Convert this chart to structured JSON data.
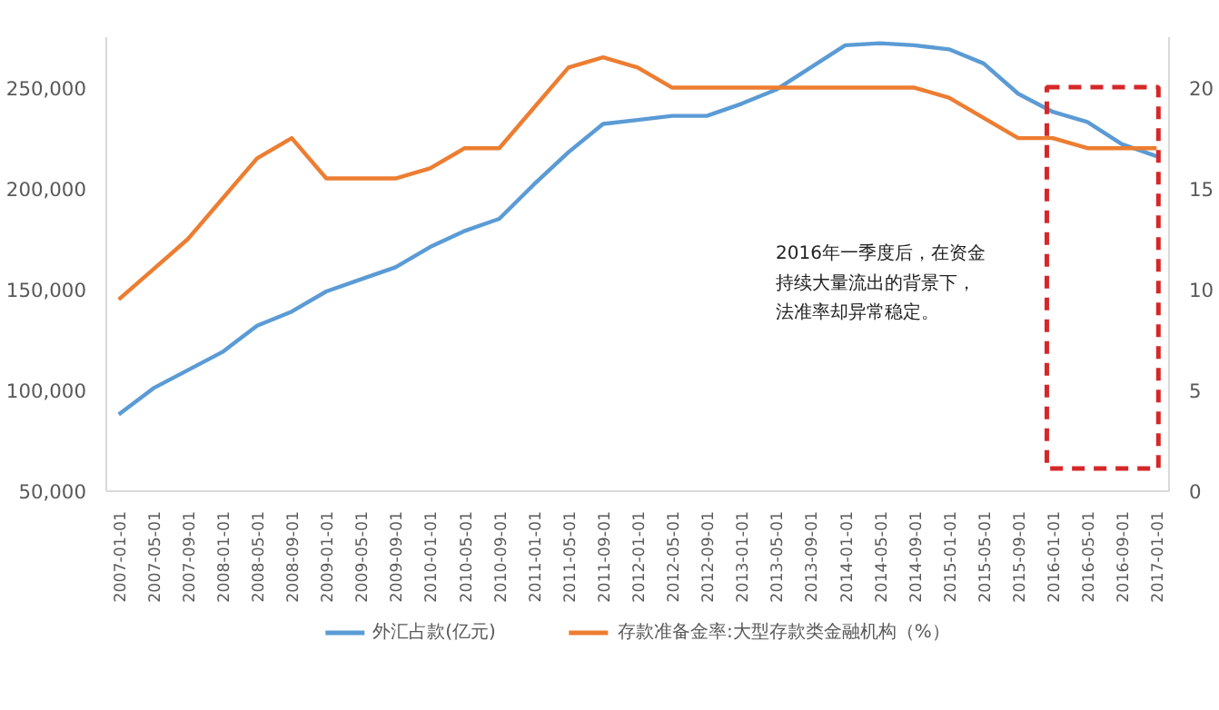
{
  "chart_data": {
    "type": "line",
    "categories": [
      "2007-01-01",
      "2007-05-01",
      "2007-09-01",
      "2008-01-01",
      "2008-05-01",
      "2008-09-01",
      "2009-01-01",
      "2009-05-01",
      "2009-09-01",
      "2010-01-01",
      "2010-05-01",
      "2010-09-01",
      "2011-01-01",
      "2011-05-01",
      "2011-09-01",
      "2012-01-01",
      "2012-05-01",
      "2012-09-01",
      "2013-01-01",
      "2013-05-01",
      "2013-09-01",
      "2014-01-01",
      "2014-05-01",
      "2014-09-01",
      "2015-01-01",
      "2015-05-01",
      "2015-09-01",
      "2016-01-01",
      "2016-05-01",
      "2016-09-01",
      "2017-01-01"
    ],
    "series": [
      {
        "name": "外汇占款(亿元)",
        "color": "#5b9bd5",
        "values": [
          88000,
          101000,
          110000,
          119000,
          132000,
          139000,
          149000,
          155000,
          161000,
          171000,
          179000,
          185000,
          202000,
          218000,
          232000,
          234000,
          236000,
          236000,
          242000,
          249000,
          260000,
          271000,
          272000,
          271000,
          269000,
          262000,
          247000,
          238000,
          233000,
          222000,
          216000
        ]
      },
      {
        "name": "存款准备金率:大型存款类金融机构（%）",
        "color": "#ed7d31",
        "axis": "y2",
        "values": [
          9.5,
          11,
          12.5,
          14.5,
          16.5,
          17.5,
          15.5,
          15.5,
          15.5,
          16,
          17,
          17,
          19,
          21,
          21.5,
          21,
          20,
          20,
          20,
          20,
          20,
          20,
          20,
          20,
          19.5,
          18.5,
          17.5,
          17.5,
          17,
          17,
          17
        ]
      }
    ],
    "ylim": [
      50000,
      275000
    ],
    "yticks": [
      {
        "value": 50000,
        "label": "50,000"
      },
      {
        "value": 100000,
        "label": "100,000"
      },
      {
        "value": 150000,
        "label": "150,000"
      },
      {
        "value": 200000,
        "label": "200,000"
      },
      {
        "value": 250000,
        "label": "250,000"
      }
    ],
    "y2lim": [
      0,
      22.5
    ],
    "y2ticks": [
      0,
      5,
      10,
      15,
      20
    ],
    "annotations": [
      "2016年一季度后，在资金",
      "持续大量流出的背景下，",
      "法准率却异常稳定。"
    ],
    "legend": "bottom",
    "marker": "none",
    "line_style": "solid"
  }
}
